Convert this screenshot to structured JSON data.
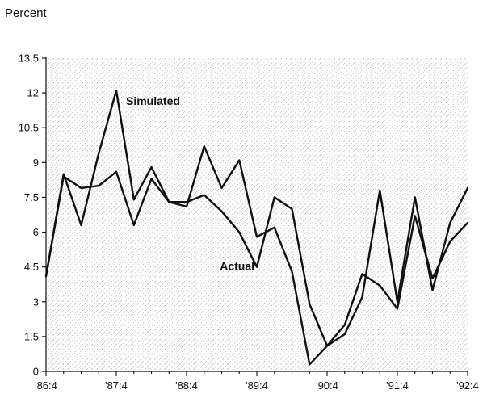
{
  "chart_data": {
    "type": "line",
    "ylabel": "Percent",
    "ylim": [
      0,
      13.5
    ],
    "yticks": [
      "0",
      "1.5",
      "3",
      "4.5",
      "6",
      "7.5",
      "9",
      "10.5",
      "12",
      "13.5"
    ],
    "ytick_values": [
      0,
      1.5,
      3,
      4.5,
      6,
      7.5,
      9,
      10.5,
      12,
      13.5
    ],
    "x": [
      "1986:4",
      "1987:1",
      "1987:2",
      "1987:3",
      "1987:4",
      "1988:1",
      "1988:2",
      "1988:3",
      "1988:4",
      "1989:1",
      "1989:2",
      "1989:3",
      "1989:4",
      "1990:1",
      "1990:2",
      "1990:3",
      "1990:4",
      "1991:1",
      "1991:2",
      "1991:3",
      "1991:4",
      "1992:1",
      "1992:2",
      "1992:3",
      "1992:4"
    ],
    "xticks": [
      "'86:4",
      "'87:4",
      "'88:4",
      "'89:4",
      "'90:4",
      "'91:4",
      "'92:4"
    ],
    "xtick_index": [
      0,
      4,
      8,
      12,
      16,
      20,
      24
    ],
    "series": [
      {
        "name": "Simulated",
        "values": [
          4.1,
          8.5,
          6.3,
          9.4,
          12.1,
          7.4,
          8.8,
          7.3,
          7.1,
          9.7,
          7.9,
          9.1,
          5.8,
          6.2,
          4.3,
          0.3,
          1.1,
          2.0,
          4.2,
          3.7,
          2.7,
          6.7,
          4.0,
          5.6,
          6.4
        ]
      },
      {
        "name": "Actual",
        "values": [
          4.1,
          8.4,
          7.9,
          8.0,
          8.6,
          6.3,
          8.3,
          7.3,
          7.3,
          7.6,
          6.9,
          6.0,
          4.5,
          7.5,
          7.0,
          2.9,
          1.1,
          1.6,
          3.2,
          7.8,
          3.0,
          7.5,
          3.5,
          6.4,
          7.9
        ]
      }
    ],
    "annotations": [
      {
        "text": "Simulated"
      },
      {
        "text": "Actual"
      }
    ],
    "background": "stippled gray",
    "grid": false
  }
}
